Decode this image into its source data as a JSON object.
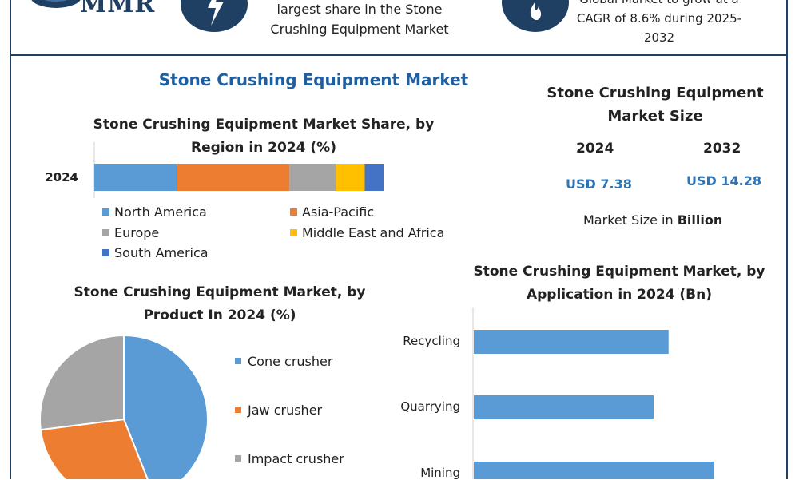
{
  "brand": {
    "logo_text": "MMR"
  },
  "top_cards": [
    {
      "icon": "lightning-icon",
      "text_lines": [
        "largest share in the Stone",
        "Crushing Equipment Market"
      ]
    },
    {
      "icon": "flame-icon",
      "text_lines": [
        "Global Market to grow at a",
        "CAGR of 8.6% during 2025-",
        "2032"
      ]
    }
  ],
  "main_title": "Stone Crushing Equipment Market",
  "region_chart": {
    "title_lines": [
      "Stone Crushing Equipment Market Share, by",
      "Region in 2024 (%)"
    ]
  },
  "market_size": {
    "title_lines": [
      "Stone Crushing Equipment",
      "Market Size"
    ],
    "years": [
      "2024",
      "2032"
    ],
    "values": [
      "USD 7.38",
      "USD 14.28"
    ],
    "note_prefix": "Market Size in ",
    "note_bold": "Billion"
  },
  "product_chart": {
    "title_lines": [
      "Stone Crushing Equipment Market, by",
      "Product In 2024 (%)"
    ]
  },
  "application_chart": {
    "title_lines": [
      "Stone Crushing Equipment Market, by",
      "Application in 2024 (Bn)"
    ]
  },
  "colors": {
    "navy": "#1f3f63",
    "blue": "#5b9bd5",
    "orange": "#ed7d31",
    "gray": "#a5a5a5",
    "yellow": "#ffc000",
    "dark_blue": "#4472c4",
    "title_blue": "#1f5fa0"
  },
  "chart_data": [
    {
      "type": "bar",
      "orientation": "horizontal-stacked",
      "categories": [
        "2024"
      ],
      "series": [
        {
          "name": "North America",
          "values": [
            28.5
          ]
        },
        {
          "name": "Asia-Pacific",
          "values": [
            39
          ]
        },
        {
          "name": "Europe",
          "values": [
            16
          ]
        },
        {
          "name": "Middle East and Africa",
          "values": [
            10
          ]
        },
        {
          "name": "South America",
          "values": [
            6.5
          ]
        }
      ],
      "xlim": [
        0,
        100
      ],
      "legend": "bottom"
    },
    {
      "type": "pie",
      "categories": [
        "Cone crusher",
        "Jaw crusher",
        "Impact crusher"
      ],
      "values": [
        44,
        29,
        27
      ],
      "legend": "right"
    },
    {
      "type": "bar",
      "orientation": "horizontal",
      "categories": [
        "Recycling",
        "Quarrying",
        "Mining"
      ],
      "values": [
        2.6,
        2.4,
        3.2
      ],
      "xlim": [
        0,
        4
      ]
    }
  ]
}
